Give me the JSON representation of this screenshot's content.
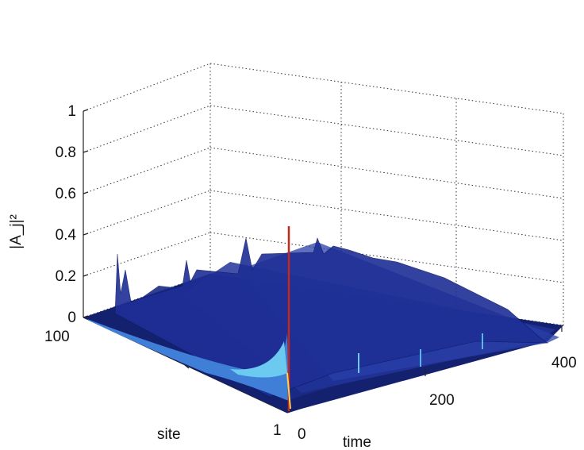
{
  "chart_data": {
    "type": "surface",
    "title": "",
    "xlabel": "time",
    "ylabel": "site",
    "zlabel": "|A_j|²",
    "xlim": [
      0,
      400
    ],
    "ylim": [
      1,
      100
    ],
    "zlim": [
      0,
      1
    ],
    "x_ticks": [
      "0",
      "200",
      "400"
    ],
    "y_ticks": [
      "1",
      "100"
    ],
    "z_ticks": [
      "0",
      "0.2",
      "0.4",
      "0.6",
      "0.8",
      "1"
    ],
    "grid": true,
    "colormap": "jet",
    "annotations": {
      "initial_pulse": {
        "time": 0,
        "site": 1,
        "value": 0.45
      },
      "edge_wave_end": {
        "time": 0,
        "site": 100,
        "value": 0.02
      }
    },
    "ridge_peaks": [
      {
        "time": 50,
        "value": 0.32
      },
      {
        "time": 150,
        "value": 0.32
      },
      {
        "time": 250,
        "value": 0.28
      },
      {
        "time": 350,
        "value": 0.22
      }
    ]
  },
  "colors": {
    "surface_dark": "#0e1a66",
    "surface_mid": "#2a3fa8",
    "surface_light": "#5ab8e8",
    "pulse": "#c2281e"
  }
}
